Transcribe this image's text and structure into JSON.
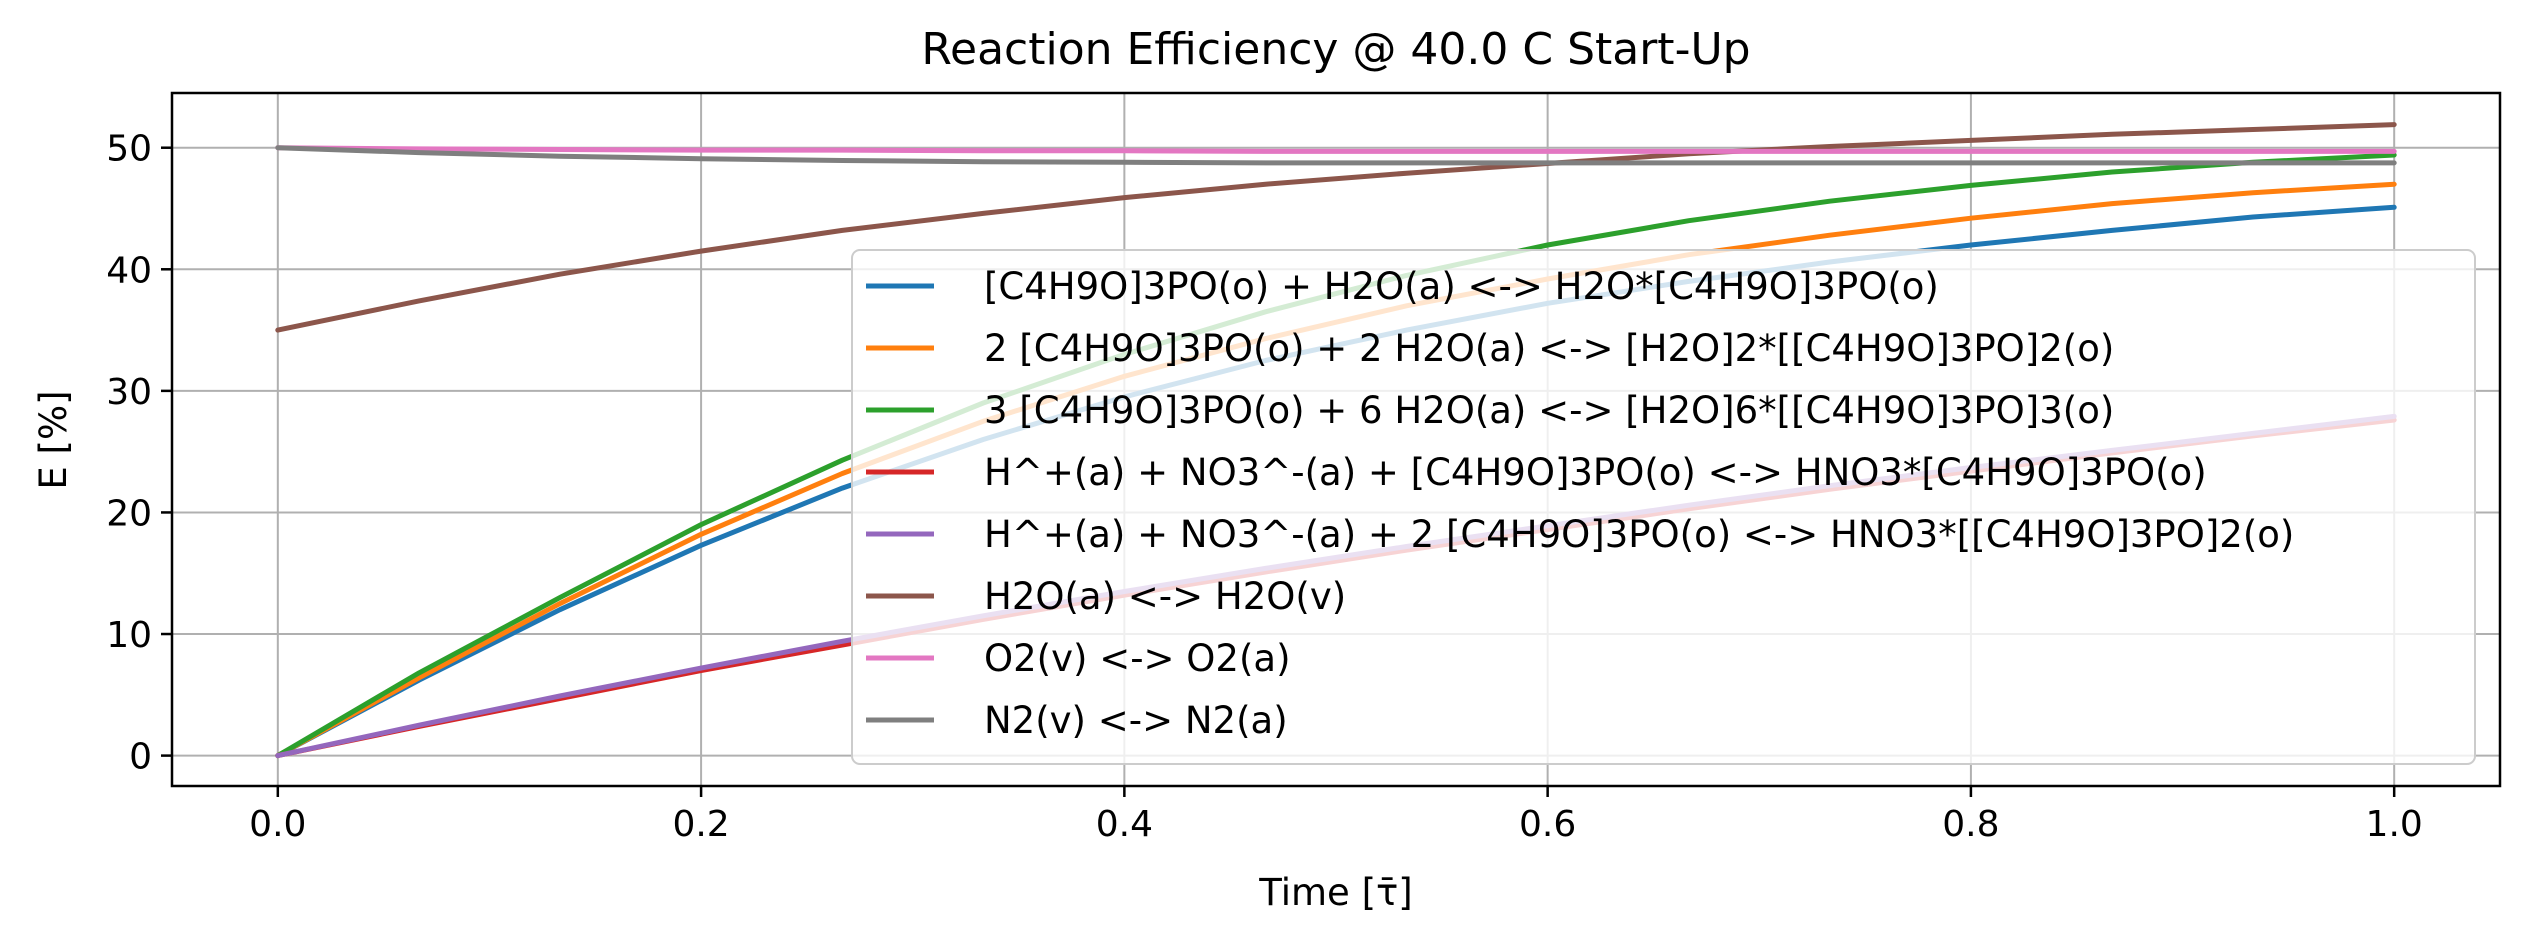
{
  "chart_data": {
    "type": "line",
    "title": "Reaction Efficiency @ 40.0 C Start-Up",
    "xlabel": "Time [τ̄]",
    "ylabel": "E [%]",
    "xlim": [
      -0.05,
      1.05
    ],
    "ylim": [
      -2.5,
      54.5
    ],
    "xticks": [
      "0.0",
      "0.2",
      "0.4",
      "0.6",
      "0.8",
      "1.0"
    ],
    "yticks": [
      "0",
      "10",
      "20",
      "30",
      "40",
      "50"
    ],
    "grid": true,
    "legend_position": "lower-right",
    "x": [
      0.0,
      0.0667,
      0.1333,
      0.2,
      0.2667,
      0.3333,
      0.4,
      0.4667,
      0.5333,
      0.6,
      0.6667,
      0.7333,
      0.8,
      0.8667,
      0.9333,
      1.0
    ],
    "series": [
      {
        "name": "[C4H9O]3PO(o) + H2O(a) <-> H2O*[C4H9O]3PO(o)",
        "color": "#1f77b4",
        "values": [
          0.0,
          6.2,
          12.0,
          17.3,
          22.0,
          26.0,
          29.5,
          32.5,
          35.0,
          37.2,
          39.0,
          40.6,
          42.0,
          43.2,
          44.3,
          45.1
        ]
      },
      {
        "name": "2 [C4H9O]3PO(o) + 2 H2O(a) <-> [H2O]2*[[C4H9O]3PO]2(o)",
        "color": "#ff7f0e",
        "values": [
          0.0,
          6.4,
          12.5,
          18.2,
          23.2,
          27.5,
          31.2,
          34.3,
          37.0,
          39.2,
          41.2,
          42.8,
          44.2,
          45.4,
          46.3,
          47.0
        ]
      },
      {
        "name": "3 [C4H9O]3PO(o) + 6 H2O(a) <-> [H2O]6*[[C4H9O]3PO]3(o)",
        "color": "#2ca02c",
        "values": [
          0.0,
          6.8,
          13.0,
          19.0,
          24.3,
          29.0,
          33.0,
          36.5,
          39.5,
          42.0,
          44.0,
          45.6,
          46.9,
          48.0,
          48.8,
          49.4
        ]
      },
      {
        "name": "H^+(a) + NO3^-(a) + [C4H9O]3PO(o) <-> HNO3*[C4H9O]3PO(o)",
        "color": "#d62728",
        "values": [
          0.0,
          2.4,
          4.7,
          7.0,
          9.1,
          11.2,
          13.2,
          15.1,
          16.9,
          18.6,
          20.3,
          21.9,
          23.4,
          24.9,
          26.3,
          27.6
        ]
      },
      {
        "name": "H^+(a) + NO3^-(a) + 2 [C4H9O]3PO(o) <-> HNO3*[[C4H9O]3PO]2(o)",
        "color": "#9467bd",
        "values": [
          0.0,
          2.5,
          4.9,
          7.2,
          9.4,
          11.5,
          13.5,
          15.4,
          17.2,
          18.9,
          20.6,
          22.2,
          23.7,
          25.1,
          26.5,
          27.9
        ]
      },
      {
        "name": "H2O(a) <-> H2O(v)",
        "color": "#8c564b",
        "values": [
          35.0,
          37.4,
          39.6,
          41.5,
          43.2,
          44.6,
          45.9,
          47.0,
          47.9,
          48.7,
          49.5,
          50.1,
          50.6,
          51.1,
          51.5,
          51.9
        ]
      },
      {
        "name": "O2(v) <-> O2(a)",
        "color": "#e377c2",
        "values": [
          50.0,
          49.9,
          49.85,
          49.8,
          49.8,
          49.75,
          49.75,
          49.7,
          49.7,
          49.7,
          49.7,
          49.7,
          49.7,
          49.7,
          49.7,
          49.7
        ]
      },
      {
        "name": "N2(v) <-> N2(a)",
        "color": "#7f7f7f",
        "values": [
          50.0,
          49.6,
          49.3,
          49.1,
          48.95,
          48.85,
          48.8,
          48.75,
          48.75,
          48.75,
          48.75,
          48.75,
          48.75,
          48.75,
          48.75,
          48.75
        ]
      }
    ]
  }
}
